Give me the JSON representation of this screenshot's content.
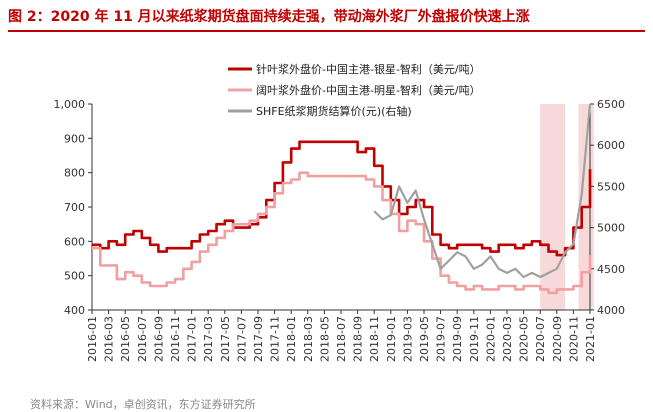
{
  "figure": {
    "title": "图 2：2020 年 11 月以来纸浆期货盘面持续走强，带动海外浆厂外盘报价快速上涨",
    "source": "资料来源：Wind，卓创资讯，东方证券研究所"
  },
  "colors": {
    "title": "#c00000",
    "needle": "#c00000",
    "broad": "#f0a0a0",
    "shfe": "#a0a0a0",
    "band": "#f7d9d9"
  },
  "chart_data": {
    "type": "line",
    "xlim": [
      "2016-01",
      "2021-01"
    ],
    "x_ticks": [
      "2016-01",
      "2016-03",
      "2016-05",
      "2016-07",
      "2016-09",
      "2016-11",
      "2017-01",
      "2017-03",
      "2017-05",
      "2017-07",
      "2017-09",
      "2017-11",
      "2018-01",
      "2018-03",
      "2018-05",
      "2018-07",
      "2018-09",
      "2018-11",
      "2019-01",
      "2019-03",
      "2019-05",
      "2019-07",
      "2019-09",
      "2019-11",
      "2020-01",
      "2020-03",
      "2020-05",
      "2020-07",
      "2020-09",
      "2020-11",
      "2021-01"
    ],
    "y_left": {
      "lim": [
        400,
        1000
      ],
      "ticks": [
        400,
        500,
        600,
        700,
        800,
        900,
        1000
      ],
      "tick_labels": [
        "400",
        "500",
        "600",
        "700",
        "800",
        "900",
        "1,000"
      ]
    },
    "y_right": {
      "label": "右轴",
      "lim": [
        4000,
        6500
      ],
      "ticks": [
        4000,
        4500,
        5000,
        5500,
        6000,
        6500
      ]
    },
    "highlight_bands": [
      [
        "2020-07",
        "2020-10"
      ],
      [
        "2020-11-20",
        "2021-01-15"
      ]
    ],
    "legend_position": "top-center",
    "series": [
      {
        "name": "针叶浆外盘价-中国主港-银星-智利（美元/吨）",
        "axis": "left",
        "style": "step",
        "color_key": "needle",
        "points": [
          [
            "2016-01",
            590
          ],
          [
            "2016-02",
            580
          ],
          [
            "2016-03",
            600
          ],
          [
            "2016-04",
            590
          ],
          [
            "2016-05",
            620
          ],
          [
            "2016-06",
            630
          ],
          [
            "2016-07",
            610
          ],
          [
            "2016-08",
            590
          ],
          [
            "2016-09",
            570
          ],
          [
            "2016-10",
            580
          ],
          [
            "2016-11",
            580
          ],
          [
            "2016-12",
            580
          ],
          [
            "2017-01",
            600
          ],
          [
            "2017-02",
            620
          ],
          [
            "2017-03",
            630
          ],
          [
            "2017-04",
            650
          ],
          [
            "2017-05",
            660
          ],
          [
            "2017-06",
            640
          ],
          [
            "2017-07",
            640
          ],
          [
            "2017-08",
            650
          ],
          [
            "2017-09",
            670
          ],
          [
            "2017-10",
            720
          ],
          [
            "2017-11",
            770
          ],
          [
            "2017-12",
            830
          ],
          [
            "2018-01",
            870
          ],
          [
            "2018-02",
            890
          ],
          [
            "2018-03",
            890
          ],
          [
            "2018-04",
            890
          ],
          [
            "2018-05",
            890
          ],
          [
            "2018-06",
            890
          ],
          [
            "2018-07",
            890
          ],
          [
            "2018-08",
            890
          ],
          [
            "2018-09",
            860
          ],
          [
            "2018-10",
            870
          ],
          [
            "2018-11",
            820
          ],
          [
            "2018-12",
            760
          ],
          [
            "2019-01",
            720
          ],
          [
            "2019-02",
            680
          ],
          [
            "2019-03",
            700
          ],
          [
            "2019-04",
            720
          ],
          [
            "2019-05",
            700
          ],
          [
            "2019-06",
            620
          ],
          [
            "2019-07",
            590
          ],
          [
            "2019-08",
            580
          ],
          [
            "2019-09",
            590
          ],
          [
            "2019-10",
            590
          ],
          [
            "2019-11",
            590
          ],
          [
            "2019-12",
            580
          ],
          [
            "2020-01",
            570
          ],
          [
            "2020-02",
            590
          ],
          [
            "2020-03",
            590
          ],
          [
            "2020-04",
            580
          ],
          [
            "2020-05",
            590
          ],
          [
            "2020-06",
            600
          ],
          [
            "2020-07",
            590
          ],
          [
            "2020-08",
            570
          ],
          [
            "2020-09",
            560
          ],
          [
            "2020-10",
            580
          ],
          [
            "2020-11",
            640
          ],
          [
            "2020-12",
            700
          ],
          [
            "2021-01",
            810
          ]
        ]
      },
      {
        "name": "阔叶浆外盘价-中国主港-明星-智利（美元/吨）",
        "axis": "left",
        "style": "step",
        "color_key": "broad",
        "points": [
          [
            "2016-01",
            580
          ],
          [
            "2016-02",
            530
          ],
          [
            "2016-03",
            530
          ],
          [
            "2016-04",
            490
          ],
          [
            "2016-05",
            510
          ],
          [
            "2016-06",
            500
          ],
          [
            "2016-07",
            480
          ],
          [
            "2016-08",
            470
          ],
          [
            "2016-09",
            470
          ],
          [
            "2016-10",
            480
          ],
          [
            "2016-11",
            490
          ],
          [
            "2016-12",
            520
          ],
          [
            "2017-01",
            540
          ],
          [
            "2017-02",
            570
          ],
          [
            "2017-03",
            590
          ],
          [
            "2017-04",
            610
          ],
          [
            "2017-05",
            630
          ],
          [
            "2017-06",
            650
          ],
          [
            "2017-07",
            650
          ],
          [
            "2017-08",
            660
          ],
          [
            "2017-09",
            680
          ],
          [
            "2017-10",
            700
          ],
          [
            "2017-11",
            740
          ],
          [
            "2017-12",
            770
          ],
          [
            "2018-01",
            780
          ],
          [
            "2018-02",
            800
          ],
          [
            "2018-03",
            790
          ],
          [
            "2018-04",
            790
          ],
          [
            "2018-05",
            790
          ],
          [
            "2018-06",
            790
          ],
          [
            "2018-07",
            790
          ],
          [
            "2018-08",
            790
          ],
          [
            "2018-09",
            790
          ],
          [
            "2018-10",
            780
          ],
          [
            "2018-11",
            760
          ],
          [
            "2018-12",
            720
          ],
          [
            "2019-01",
            680
          ],
          [
            "2019-02",
            630
          ],
          [
            "2019-03",
            660
          ],
          [
            "2019-04",
            650
          ],
          [
            "2019-05",
            600
          ],
          [
            "2019-06",
            550
          ],
          [
            "2019-07",
            500
          ],
          [
            "2019-08",
            480
          ],
          [
            "2019-09",
            470
          ],
          [
            "2019-10",
            460
          ],
          [
            "2019-11",
            470
          ],
          [
            "2019-12",
            460
          ],
          [
            "2020-01",
            460
          ],
          [
            "2020-02",
            470
          ],
          [
            "2020-03",
            470
          ],
          [
            "2020-04",
            460
          ],
          [
            "2020-05",
            470
          ],
          [
            "2020-06",
            470
          ],
          [
            "2020-07",
            460
          ],
          [
            "2020-08",
            450
          ],
          [
            "2020-09",
            460
          ],
          [
            "2020-10",
            460
          ],
          [
            "2020-11",
            470
          ],
          [
            "2020-12",
            510
          ],
          [
            "2021-01",
            560
          ]
        ]
      },
      {
        "name": "SHFE纸浆期货结算价(元)(右轴)",
        "axis": "right",
        "style": "line",
        "color_key": "shfe",
        "points": [
          [
            "2018-11",
            5200
          ],
          [
            "2018-12",
            5100
          ],
          [
            "2019-01",
            5150
          ],
          [
            "2019-02",
            5500
          ],
          [
            "2019-03",
            5300
          ],
          [
            "2019-04",
            5450
          ],
          [
            "2019-05",
            5100
          ],
          [
            "2019-06",
            4800
          ],
          [
            "2019-07",
            4500
          ],
          [
            "2019-08",
            4600
          ],
          [
            "2019-09",
            4700
          ],
          [
            "2019-10",
            4650
          ],
          [
            "2019-11",
            4500
          ],
          [
            "2019-12",
            4550
          ],
          [
            "2020-01",
            4650
          ],
          [
            "2020-02",
            4500
          ],
          [
            "2020-03",
            4450
          ],
          [
            "2020-04",
            4500
          ],
          [
            "2020-05",
            4400
          ],
          [
            "2020-06",
            4450
          ],
          [
            "2020-07",
            4400
          ],
          [
            "2020-08",
            4450
          ],
          [
            "2020-09",
            4500
          ],
          [
            "2020-10",
            4700
          ],
          [
            "2020-11",
            4800
          ],
          [
            "2020-12",
            5400
          ],
          [
            "2021-01",
            6500
          ]
        ]
      }
    ]
  }
}
